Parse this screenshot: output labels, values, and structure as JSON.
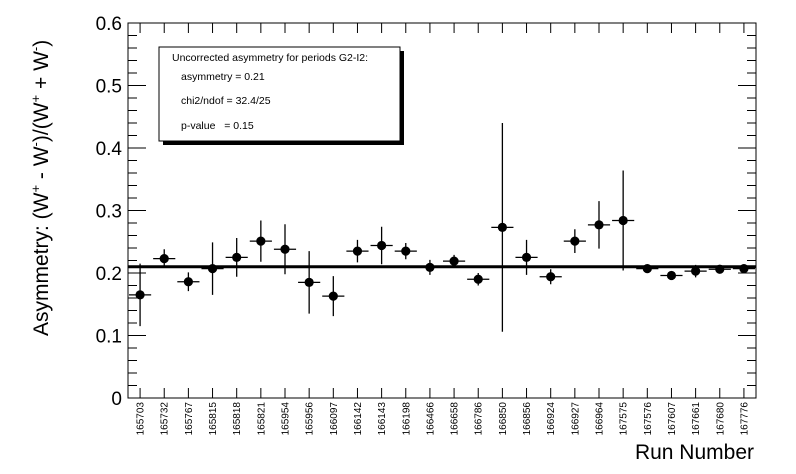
{
  "chart_data": {
    "type": "scatter",
    "xlabel": "Run Number",
    "ylabel": "Asymmetry: (W+ - W-)/(W+ + W-)",
    "ylim": [
      0,
      0.6
    ],
    "yticks": [
      "0",
      "0.1",
      "0.2",
      "0.3",
      "0.4",
      "0.5",
      "0.6"
    ],
    "grid": false,
    "categories": [
      "165703",
      "165732",
      "165767",
      "165815",
      "165818",
      "165821",
      "165954",
      "165956",
      "166097",
      "166142",
      "166143",
      "166198",
      "166466",
      "166658",
      "166786",
      "166850",
      "166856",
      "166924",
      "166927",
      "166964",
      "167575",
      "167576",
      "167607",
      "167661",
      "167680",
      "167776"
    ],
    "values": [
      0.165,
      0.223,
      0.186,
      0.207,
      0.225,
      0.251,
      0.238,
      0.185,
      0.163,
      0.235,
      0.244,
      0.235,
      0.209,
      0.219,
      0.19,
      0.273,
      0.225,
      0.194,
      0.251,
      0.277,
      0.284,
      0.207,
      0.196,
      0.203,
      0.206,
      0.207
    ],
    "errors": [
      0.05,
      0.015,
      0.015,
      0.042,
      0.031,
      0.033,
      0.04,
      0.05,
      0.032,
      0.018,
      0.03,
      0.013,
      0.012,
      0.01,
      0.01,
      0.167,
      0.028,
      0.012,
      0.019,
      0.038,
      0.08,
      0.006,
      0.007,
      0.01,
      0.006,
      0.006
    ],
    "fit": {
      "value": 0.21
    },
    "legend": {
      "placement": "top-left",
      "title": "Uncorrected asymmetry for periods G2-I2:",
      "lines": [
        "asymmetry = 0.21",
        "chi2/ndof = 32.4/25",
        "p-value   = 0.15"
      ]
    }
  }
}
